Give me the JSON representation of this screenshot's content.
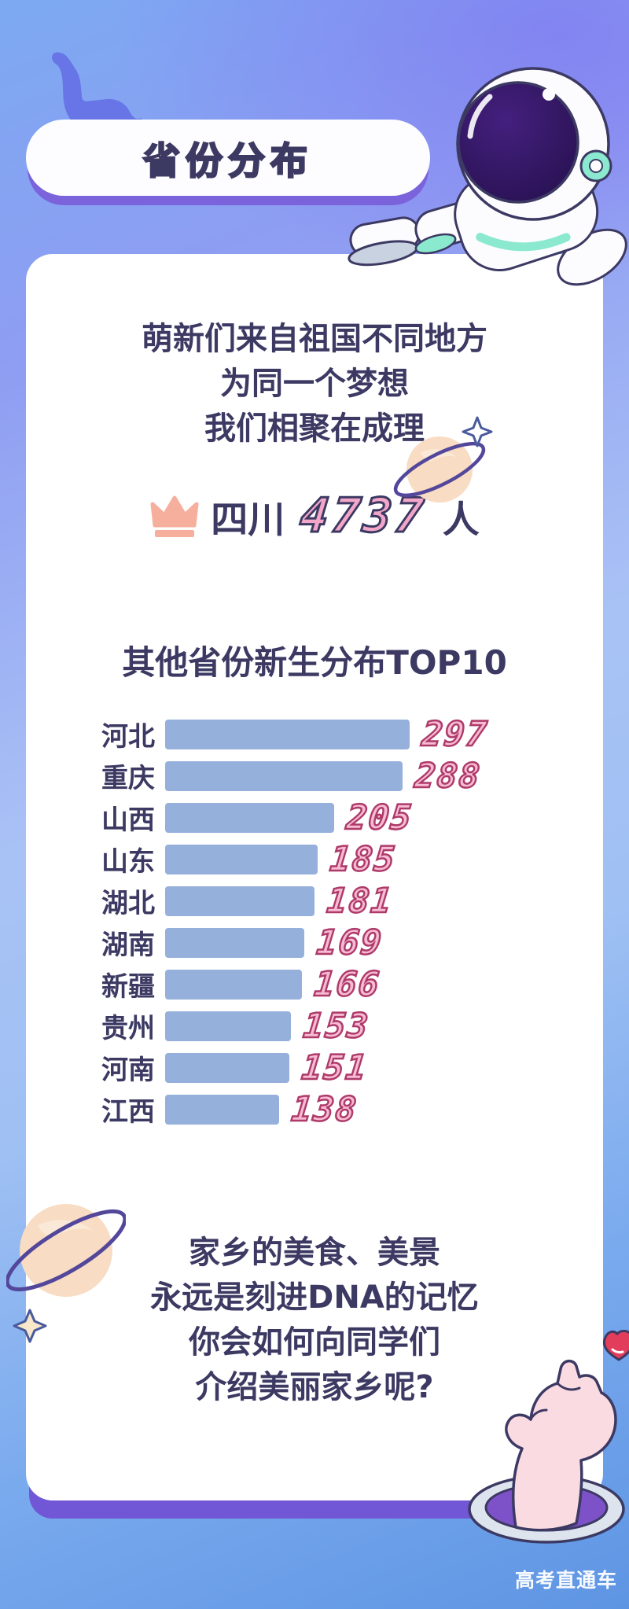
{
  "header": {
    "badge": "省份分布"
  },
  "intro": {
    "lines": [
      "萌新们来自祖国不同地方",
      "为同一个梦想",
      "我们相聚在成理"
    ]
  },
  "champion": {
    "province": "四川",
    "count": "4737",
    "unit": "人"
  },
  "chart_data": {
    "type": "bar",
    "orientation": "horizontal",
    "title": "其他省份新生分布TOP10",
    "categories": [
      "河北",
      "重庆",
      "山西",
      "山东",
      "湖北",
      "湖南",
      "新疆",
      "贵州",
      "河南",
      "江西"
    ],
    "values": [
      297,
      288,
      205,
      185,
      181,
      169,
      166,
      153,
      151,
      138
    ],
    "value_labels_shown": true,
    "xlim": [
      0,
      300
    ],
    "grid": false,
    "legend": "none",
    "bar_color": "#95B0DB",
    "value_label_color": "#F7BCD3"
  },
  "outro": {
    "lines": [
      "家乡的美食、美景",
      "永远是刻进DNA的记忆",
      "你会如何向同学们",
      "介绍美丽家乡呢?"
    ]
  },
  "watermark": "高考直通车",
  "colors": {
    "text_navy": "#3C3963",
    "bar_blue": "#95B0DB",
    "value_pink_fill": "#F7BCD3",
    "value_pink_stroke": "#AE3A6A",
    "count_pink": "#F2A6C8",
    "crown_salmon": "#F6AF9D",
    "shadow_purple": "#7157D6",
    "teal_accent": "#8BE9CF",
    "planet_peach": "#F8DCC3",
    "ring_purple": "#53479B",
    "hole_purple": "#7D52C8",
    "heart_red": "#E23D5B",
    "hand_pink": "#FADBE1",
    "bg_blue_top": "#7CA9F2",
    "bg_blue_bottom": "#5E95E3"
  },
  "icons": [
    "dinosaur-icon",
    "astronaut-icon",
    "crown-icon",
    "ringed-planet-icon",
    "sparkle-icon",
    "finger-heart-hand-icon",
    "heart-icon"
  ]
}
